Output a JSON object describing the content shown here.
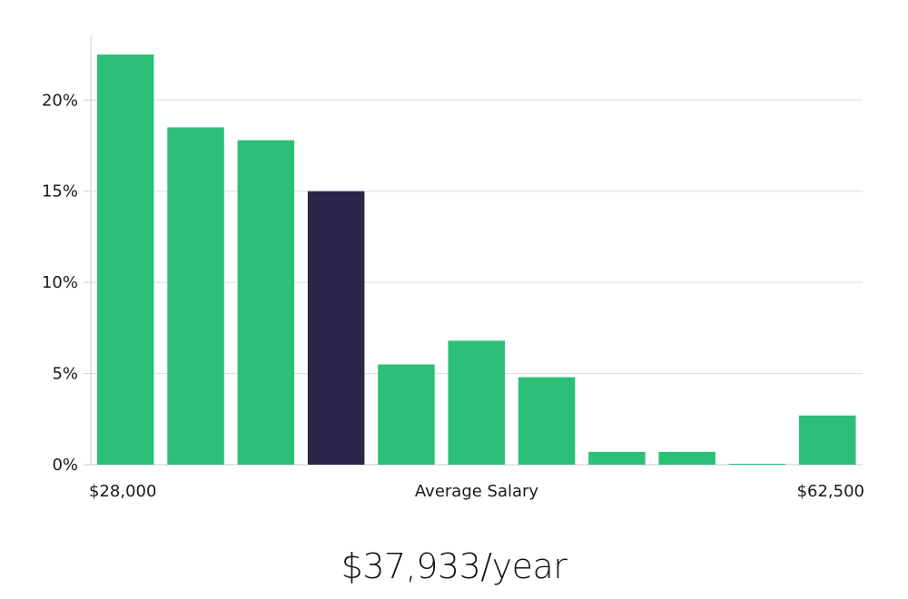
{
  "chart_data": {
    "type": "bar",
    "title": "",
    "xlabel": "Average Salary",
    "ylabel": "",
    "x_min_label": "$28,000",
    "x_max_label": "$62,500",
    "ylim": [
      0,
      23.5
    ],
    "yticks": [
      {
        "value": 0,
        "label": "0%"
      },
      {
        "value": 5,
        "label": "5%"
      },
      {
        "value": 10,
        "label": "10%"
      },
      {
        "value": 15,
        "label": "15%"
      },
      {
        "value": 20,
        "label": "20%"
      }
    ],
    "grid": true,
    "values": [
      22.5,
      18.5,
      17.8,
      15.0,
      5.5,
      6.8,
      4.8,
      0.7,
      0.7,
      0.05,
      2.7
    ],
    "highlight_index": 3,
    "bar_color": "#2bbf78",
    "highlight_color": "#29264a",
    "grid_color": "#dddddd",
    "axis_color": "#cccccc"
  },
  "summary": {
    "average_salary_label": "$37,933/year"
  }
}
